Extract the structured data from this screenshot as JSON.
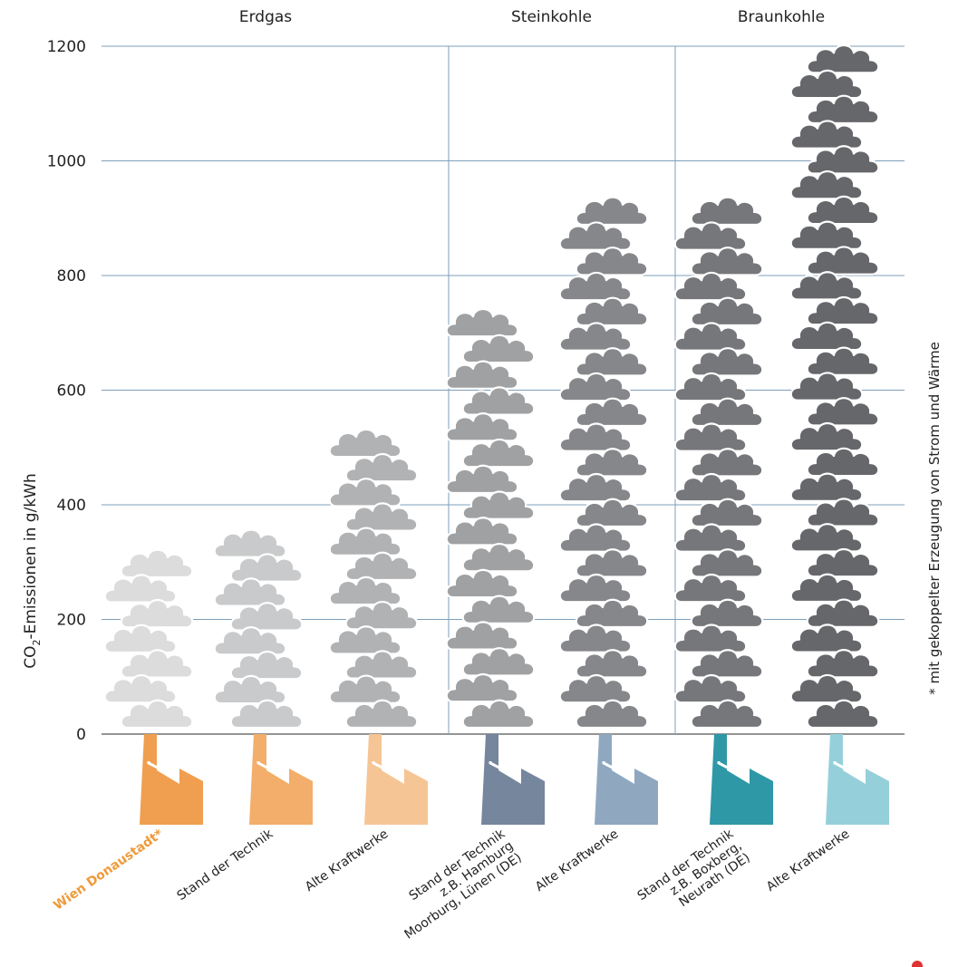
{
  "chart_data": {
    "type": "bar",
    "ylabel_prefix": "CO",
    "ylabel_sub": "2",
    "ylabel_suffix": "-Emissionen in g/kWh",
    "ylim": [
      0,
      1200
    ],
    "yticks": [
      "0",
      "200",
      "400",
      "600",
      "800",
      "1000",
      "1200"
    ],
    "grid": true,
    "groups": [
      {
        "label": "Erdgas",
        "categories": [
          0,
          1,
          2
        ]
      },
      {
        "label": "Steinkohle",
        "categories": [
          3,
          4
        ]
      },
      {
        "label": "Braunkohle",
        "categories": [
          5,
          6
        ]
      }
    ],
    "categories": [
      {
        "lines": [
          "Wien Donaustadt*"
        ],
        "highlight": true
      },
      {
        "lines": [
          "Stand der Technik"
        ],
        "highlight": false
      },
      {
        "lines": [
          "Alte Kraftwerke"
        ],
        "highlight": false
      },
      {
        "lines": [
          "Stand der Technik",
          "z.B. Hamburg",
          "Moorburg, Lünen (DE)"
        ],
        "highlight": false
      },
      {
        "lines": [
          "Alte Kraftwerke"
        ],
        "highlight": false
      },
      {
        "lines": [
          "Stand der Technik",
          "z.B. Boxberg,",
          "Neurath (DE)"
        ],
        "highlight": false
      },
      {
        "lines": [
          "Alte Kraftwerke"
        ],
        "highlight": false
      }
    ],
    "values": [
      310,
      345,
      520,
      730,
      925,
      925,
      1190
    ],
    "cloud_colors": [
      "#dcdcdc",
      "#c9cacb",
      "#b1b2b4",
      "#a0a1a3",
      "#86878a",
      "#76777a",
      "#66676a"
    ],
    "factory_colors": [
      "#ef9f4f",
      "#f2ae6a",
      "#f6c595",
      "#75869d",
      "#8fa8c0",
      "#2e98a6",
      "#95d0da"
    ],
    "footnote": "* mit gekoppelter Erzeugung von Strom und Wärme"
  }
}
